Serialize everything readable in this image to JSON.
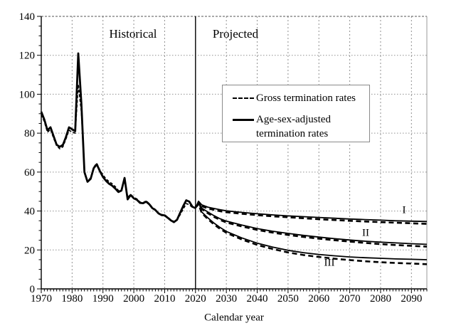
{
  "annotations": {
    "historical": "Historical",
    "projected": "Projected",
    "xlabel": "Calendar year"
  },
  "legend": {
    "items": [
      {
        "label": "Gross termination rates",
        "style": "dashed"
      },
      {
        "label": "Age-sex-adjusted termination rates",
        "style": "solid"
      }
    ]
  },
  "chart_data": {
    "type": "line",
    "title": "",
    "xlabel": "Calendar year",
    "ylabel": "",
    "x_range": [
      1970,
      2095
    ],
    "y_range": [
      0,
      140
    ],
    "x_ticks": [
      1970,
      1980,
      1990,
      2000,
      2010,
      2020,
      2030,
      2040,
      2050,
      2060,
      2070,
      2080,
      2090
    ],
    "y_ticks": [
      0,
      20,
      40,
      60,
      80,
      100,
      120,
      140
    ],
    "x_minor_step": 1,
    "y_minor_step": 5,
    "divider_year": 2020,
    "grid": true,
    "line_color": "#000000",
    "grid_color": "#909090",
    "historical": {
      "years": [
        1970,
        1971,
        1972,
        1973,
        1974,
        1975,
        1976,
        1977,
        1978,
        1979,
        1980,
        1981,
        1982,
        1983,
        1984,
        1985,
        1986,
        1987,
        1988,
        1989,
        1990,
        1991,
        1992,
        1993,
        1994,
        1995,
        1996,
        1997,
        1998,
        1999,
        2000,
        2001,
        2002,
        2003,
        2004,
        2005,
        2006,
        2007,
        2008,
        2009,
        2010,
        2011,
        2012,
        2013,
        2014,
        2015,
        2016,
        2017,
        2018,
        2019,
        2020
      ],
      "adjusted": [
        91,
        87,
        81.5,
        83,
        78.5,
        74,
        73,
        74,
        78,
        83,
        82,
        81,
        121,
        95,
        60,
        55,
        56.5,
        62,
        64,
        60.5,
        57.5,
        55.5,
        54,
        53,
        51.5,
        49.8,
        50.5,
        57,
        46,
        48.2,
        46.5,
        45.8,
        44.2,
        44,
        44.8,
        43.5,
        41.5,
        40.5,
        38.8,
        37.9,
        37.8,
        36.5,
        35.2,
        34.3,
        35.5,
        39,
        42.5,
        45.5,
        44.8,
        42.2,
        41.5
      ],
      "gross": [
        89.5,
        86,
        80.5,
        82,
        77.5,
        73.5,
        72,
        73,
        77,
        81.5,
        80.5,
        80,
        105,
        91,
        60,
        55.5,
        57,
        62.5,
        64.5,
        61,
        58.5,
        56.5,
        55,
        54,
        52.5,
        50.5,
        51,
        57,
        47,
        48.5,
        47,
        46.2,
        44.6,
        44.3,
        45.2,
        43.8,
        41.8,
        40.8,
        39,
        38.2,
        38,
        36.8,
        35.5,
        34.6,
        35.2,
        38,
        41,
        43.8,
        43.3,
        41.8,
        41.8
      ]
    },
    "projections": {
      "years": [
        2020,
        2021,
        2022,
        2024,
        2026,
        2028,
        2030,
        2035,
        2040,
        2045,
        2050,
        2055,
        2060,
        2065,
        2070,
        2075,
        2080,
        2085,
        2090,
        2095
      ],
      "scenarios": [
        {
          "name": "I",
          "adjusted": [
            41.5,
            45,
            43.2,
            42,
            41.3,
            40.7,
            40.1,
            39.3,
            38.6,
            38,
            37.5,
            37.1,
            36.7,
            36.3,
            35.9,
            35.6,
            35.3,
            35,
            34.8,
            34.6
          ],
          "gross": [
            41.8,
            43.5,
            42.5,
            41.3,
            40.6,
            39.9,
            39.4,
            38.6,
            37.9,
            37.3,
            36.8,
            36.3,
            35.8,
            35.4,
            35,
            34.6,
            34.3,
            34,
            33.7,
            33.4
          ]
        },
        {
          "name": "II",
          "adjusted": [
            41.5,
            45,
            41.5,
            39.5,
            37.6,
            36,
            34.8,
            32.8,
            31,
            29.6,
            28.5,
            27.5,
            26.6,
            25.8,
            25.1,
            24.5,
            24,
            23.6,
            23.2,
            22.9
          ],
          "gross": [
            41.8,
            43.5,
            41,
            38.9,
            37,
            35.4,
            34.1,
            32.1,
            30.3,
            28.9,
            27.7,
            26.7,
            25.8,
            25,
            24.3,
            23.6,
            23,
            22.5,
            22.1,
            21.7
          ]
        },
        {
          "name": "III",
          "adjusted": [
            41.5,
            45,
            39.5,
            36.5,
            33.8,
            31.5,
            29.5,
            26.2,
            23.5,
            21.5,
            19.8,
            18.6,
            17.7,
            17,
            16.4,
            16,
            15.7,
            15.4,
            15.2,
            15
          ],
          "gross": [
            41.8,
            43.5,
            39,
            35.9,
            33.1,
            30.8,
            28.8,
            25.4,
            22.6,
            20.5,
            18.7,
            17.4,
            16.4,
            15.5,
            14.8,
            14.2,
            13.7,
            13.3,
            13,
            12.7
          ]
        }
      ]
    }
  }
}
